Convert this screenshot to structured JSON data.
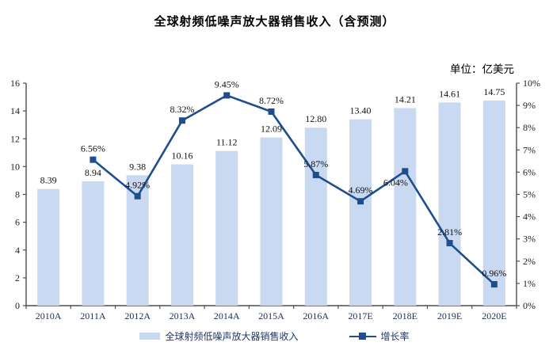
{
  "page": {
    "title": "全球射频低噪声放大器销售收入（含预测）",
    "unit_label": "单位：亿美元"
  },
  "chart_data": {
    "type": "bar",
    "subtype": "combo-bar-line",
    "title": "全球射频低噪声放大器销售收入（含预测）",
    "unit": "单位：亿美元",
    "categories": [
      "2010A",
      "2011A",
      "2012A",
      "2013A",
      "2014A",
      "2015A",
      "2016A",
      "2017E",
      "2018E",
      "2019E",
      "2020E"
    ],
    "series": [
      {
        "name": "全球射频低噪声放大器销售收入",
        "type": "bar",
        "axis": "left",
        "color": "#C9D9F1",
        "values": [
          8.39,
          8.94,
          9.38,
          10.16,
          11.12,
          12.09,
          12.8,
          13.4,
          14.21,
          14.61,
          14.75
        ],
        "labels": [
          "8.39",
          "8.94",
          "9.38",
          "10.16",
          "11.12",
          "12.09",
          "12.80",
          "13.40",
          "14.21",
          "14.61",
          "14.75"
        ]
      },
      {
        "name": "增长率",
        "type": "line",
        "axis": "right",
        "color": "#1F4E8C",
        "values": [
          null,
          6.56,
          4.92,
          8.32,
          9.45,
          8.72,
          5.87,
          4.69,
          6.04,
          2.81,
          0.96
        ],
        "labels": [
          "",
          "6.56%",
          "4.92%",
          "8.32%",
          "9.45%",
          "8.72%",
          "5.87%",
          "4.69%",
          "6.04%",
          "2.81%",
          "0.96%"
        ],
        "label_position_overrides": {
          "2018E": "below"
        }
      }
    ],
    "left_axis": {
      "min": 0,
      "max": 16,
      "step": 2,
      "ticks": [
        "0",
        "2",
        "4",
        "6",
        "8",
        "10",
        "12",
        "14",
        "16"
      ]
    },
    "right_axis": {
      "min": 0,
      "max": 10,
      "step": 1,
      "ticks": [
        "0%",
        "1%",
        "2%",
        "3%",
        "4%",
        "5%",
        "6%",
        "7%",
        "8%",
        "9%",
        "10%"
      ]
    },
    "legend": [
      {
        "label": "全球射频低噪声放大器销售收入",
        "swatch": "bar"
      },
      {
        "label": "增长率",
        "swatch": "line-marker"
      }
    ],
    "layout_hints": {
      "gridlines": false,
      "legend_position": "bottom-center"
    }
  }
}
